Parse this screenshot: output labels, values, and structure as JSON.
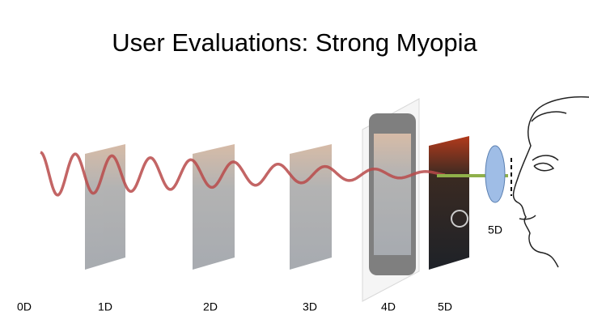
{
  "title": "User Evaluations: Strong Myopia",
  "labels": [
    "0D",
    "1D",
    "2D",
    "3D",
    "4D",
    "5D"
  ],
  "lens_label": "5D"
}
